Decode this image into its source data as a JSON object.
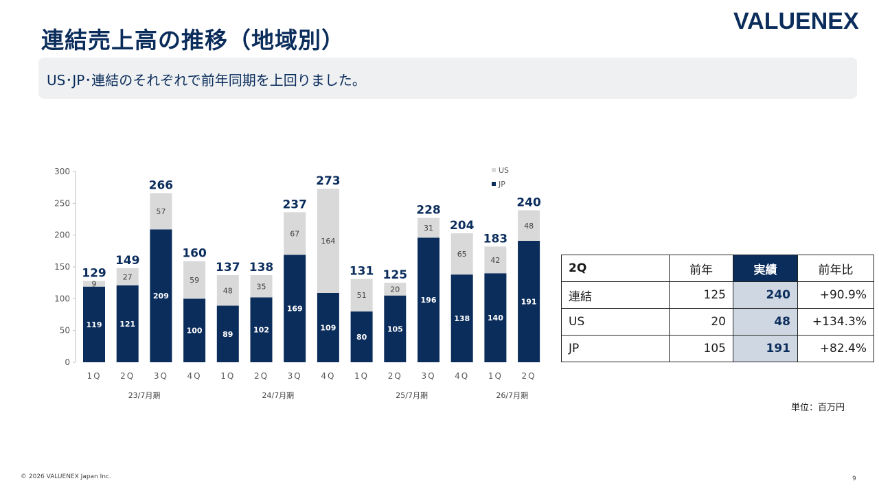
{
  "header": {
    "title": "連結売上高の推移（地域別）",
    "logo": "VALUENEX"
  },
  "summary": "US･JP･連結のそれぞれで前年同期を上回りました。",
  "chart_data": {
    "type": "bar",
    "stacked": true,
    "categories": [
      "1Q",
      "2Q",
      "3Q",
      "4Q",
      "1Q",
      "2Q",
      "3Q",
      "4Q",
      "1Q",
      "2Q",
      "3Q",
      "4Q",
      "1Q",
      "2Q"
    ],
    "groups": [
      {
        "label": "23/7月期",
        "count": 4
      },
      {
        "label": "24/7月期",
        "count": 4
      },
      {
        "label": "25/7月期",
        "count": 4
      },
      {
        "label": "26/7月期",
        "count": 2
      }
    ],
    "series": [
      {
        "name": "JP",
        "color": "#0b2d5c",
        "values": [
          119,
          121,
          209,
          100,
          89,
          102,
          169,
          109,
          80,
          105,
          196,
          138,
          140,
          191
        ]
      },
      {
        "name": "US",
        "color": "#d9d9d9",
        "values": [
          9,
          27,
          57,
          59,
          48,
          35,
          67,
          164,
          51,
          20,
          31,
          65,
          42,
          48
        ]
      }
    ],
    "totals": [
      129,
      149,
      266,
      160,
      137,
      138,
      237,
      273,
      131,
      125,
      228,
      204,
      183,
      240
    ],
    "ylim": [
      0,
      300
    ],
    "yticks": [
      0,
      50,
      100,
      150,
      200,
      250,
      300
    ],
    "legend": [
      "US",
      "JP"
    ],
    "legend_position": "top-right",
    "grid": false
  },
  "table": {
    "header": {
      "label": "2Q",
      "prev": "前年",
      "actual": "実績",
      "ratio": "前年比"
    },
    "rows": [
      {
        "label": "連結",
        "prev": "125",
        "actual": "240",
        "ratio": "+90.9%"
      },
      {
        "label": "US",
        "prev": "20",
        "actual": "48",
        "ratio": "+134.3%"
      },
      {
        "label": "JP",
        "prev": "105",
        "actual": "191",
        "ratio": "+82.4%"
      }
    ]
  },
  "unit": "単位：百万円",
  "footer": {
    "copyright": "© 2026 VALUENEX Japan Inc.",
    "page": "9"
  }
}
